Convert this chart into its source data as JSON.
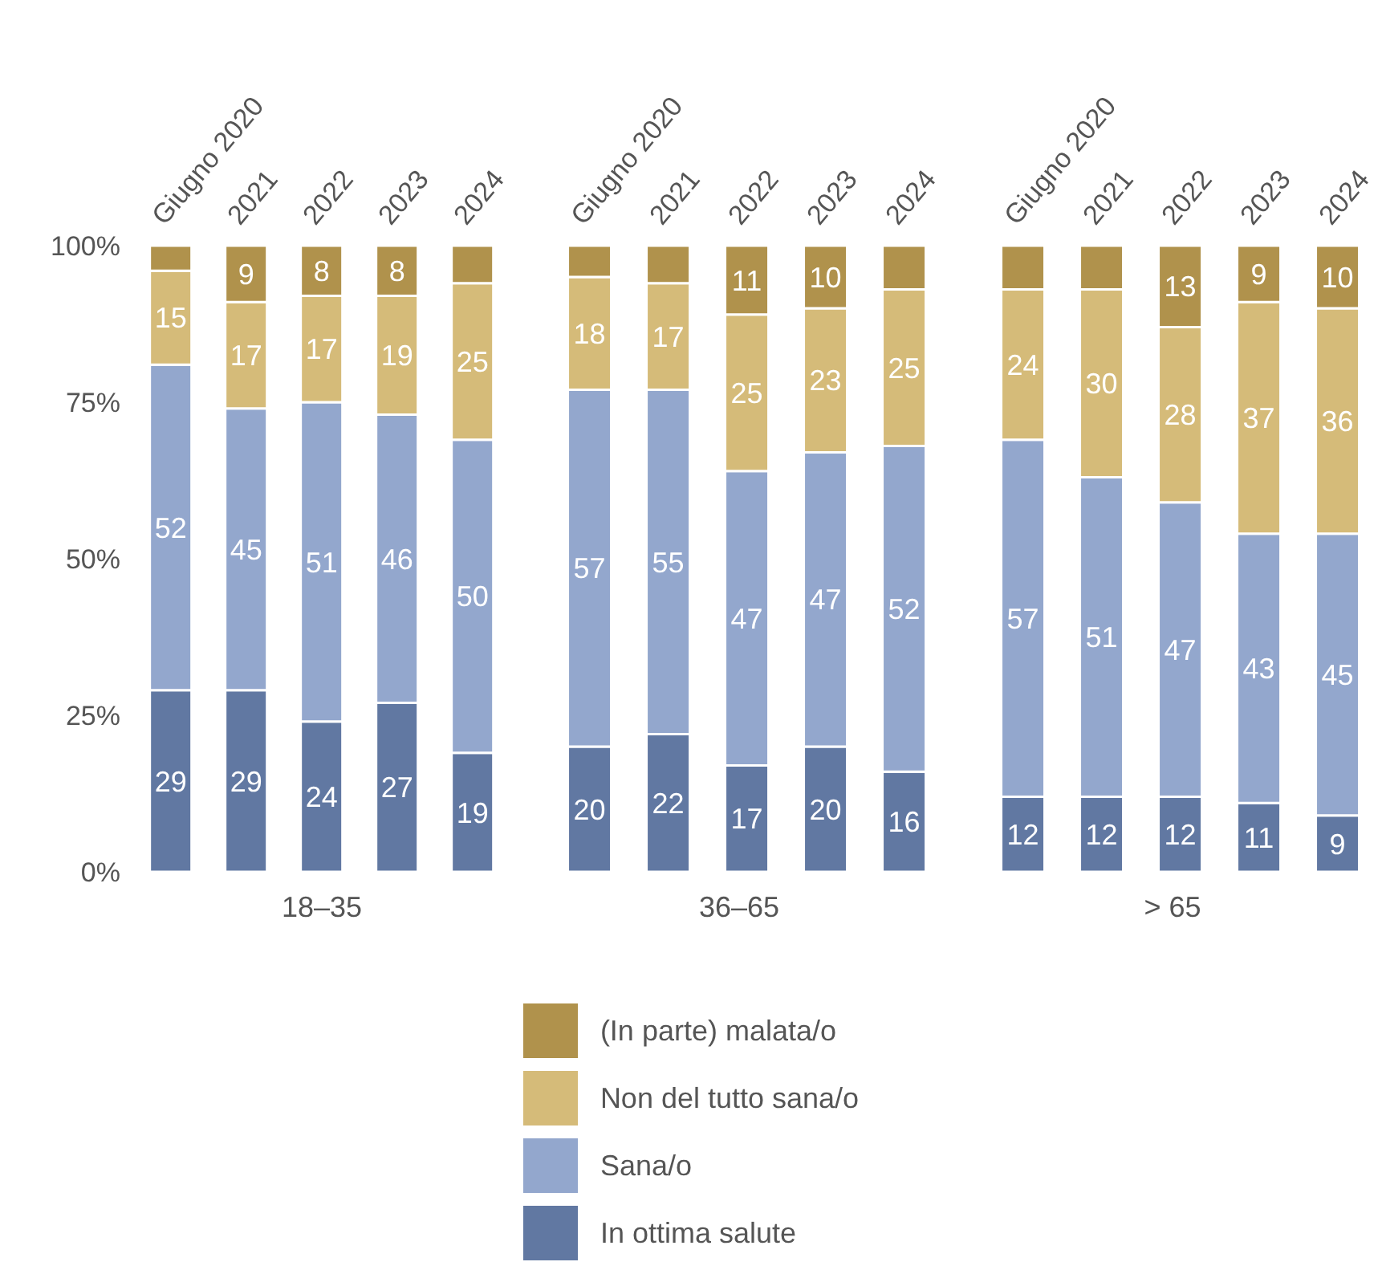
{
  "chart_data": [
    {
      "type": "bar",
      "stacked": true,
      "xlabel": "18–35",
      "categories": [
        "Giugno 2020",
        "2021",
        "2022",
        "2023",
        "2024"
      ],
      "ylim": [
        0,
        100
      ],
      "yticks": [
        {
          "value": 0,
          "label": "0%"
        },
        {
          "value": 25,
          "label": "25%"
        },
        {
          "value": 50,
          "label": "50%"
        },
        {
          "value": 75,
          "label": "75%"
        },
        {
          "value": 100,
          "label": "100%"
        }
      ],
      "legend": "bottom",
      "series": [
        {
          "name": "In ottima salute",
          "color": "#6178a2",
          "values": [
            29,
            29,
            24,
            27,
            19
          ],
          "value_labels": [
            "29",
            "29",
            "24",
            "27",
            "19"
          ]
        },
        {
          "name": "Sana/o",
          "color": "#93a7cd",
          "values": [
            52,
            45,
            51,
            46,
            50
          ],
          "value_labels": [
            "52",
            "45",
            "51",
            "46",
            "50"
          ]
        },
        {
          "name": "Non del tutto sana/o",
          "color": "#d5bb79",
          "values": [
            15,
            17,
            17,
            19,
            25
          ],
          "value_labels": [
            "15",
            "17",
            "17",
            "19",
            "25"
          ]
        },
        {
          "name": "(In parte) malata/o",
          "color": "#b0924c",
          "values": [
            4,
            9,
            8,
            8,
            6
          ],
          "value_labels": [
            null,
            "9",
            "8",
            "8",
            null
          ]
        }
      ]
    },
    {
      "type": "bar",
      "stacked": true,
      "xlabel": "36–65",
      "categories": [
        "Giugno 2020",
        "2021",
        "2022",
        "2023",
        "2024"
      ],
      "ylim": [
        0,
        100
      ],
      "tick_labels": "x",
      "series": [
        {
          "color": "#6178a2",
          "values": [
            20,
            22,
            17,
            20,
            16
          ],
          "value_labels": [
            "20",
            "22",
            "17",
            "20",
            "16"
          ]
        },
        {
          "color": "#93a7cd",
          "values": [
            57,
            55,
            47,
            47,
            52
          ],
          "value_labels": [
            "57",
            "55",
            "47",
            "47",
            "52"
          ]
        },
        {
          "color": "#d5bb79",
          "values": [
            18,
            17,
            25,
            23,
            25
          ],
          "value_labels": [
            "18",
            "17",
            "25",
            "23",
            "25"
          ]
        },
        {
          "color": "#b0924c",
          "values": [
            5,
            6,
            11,
            10,
            7
          ],
          "value_labels": [
            null,
            null,
            "11",
            "10",
            null
          ]
        }
      ]
    },
    {
      "type": "bar",
      "stacked": true,
      "xlabel": "> 65",
      "categories": [
        "Giugno 2020",
        "2021",
        "2022",
        "2023",
        "2024"
      ],
      "ylim": [
        0,
        100
      ],
      "tick_labels": "x",
      "series": [
        {
          "color": "#6178a2",
          "values": [
            12,
            12,
            12,
            11,
            9
          ],
          "value_labels": [
            "12",
            "12",
            "12",
            "11",
            "9"
          ]
        },
        {
          "color": "#93a7cd",
          "values": [
            57,
            51,
            47,
            43,
            45
          ],
          "value_labels": [
            "57",
            "51",
            "47",
            "43",
            "45"
          ]
        },
        {
          "color": "#d5bb79",
          "values": [
            24,
            30,
            28,
            37,
            36
          ],
          "value_labels": [
            "24",
            "30",
            "28",
            "37",
            "36"
          ]
        },
        {
          "color": "#b0924c",
          "values": [
            7,
            7,
            13,
            9,
            10
          ],
          "value_labels": [
            null,
            null,
            "13",
            "9",
            "10"
          ]
        }
      ]
    }
  ]
}
